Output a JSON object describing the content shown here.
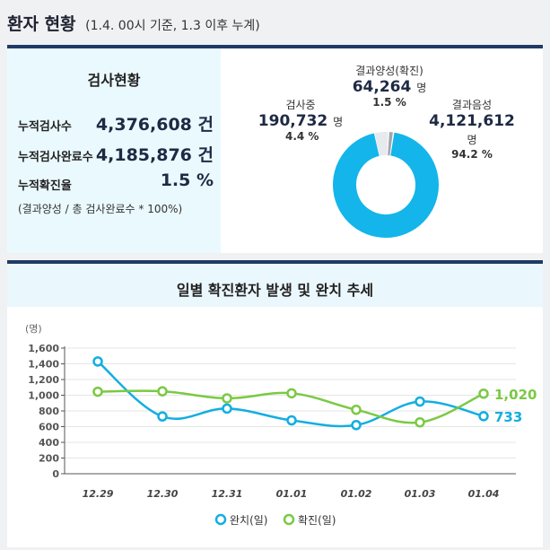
{
  "header": {
    "title": "환자 현황",
    "subtitle": "(1.4. 00시 기준, 1.3 이후 누계)"
  },
  "status": {
    "title": "검사현황",
    "rows": [
      {
        "label": "누적검사수",
        "value": "4,376,608 건"
      },
      {
        "label": "누적검사완료수",
        "value": "4,185,876 건"
      },
      {
        "label": "누적확진율",
        "value": "1.5 %"
      }
    ],
    "note": "(결과양성 / 총 검사완료수 * 100%)"
  },
  "donut": {
    "testing": {
      "label": "검사중",
      "value": "190,732",
      "unit": "명",
      "pct": "4.4 %",
      "share": 4.4,
      "color": "#e6e9ed"
    },
    "positive": {
      "label": "결과양성(확진)",
      "value": "64,264",
      "unit": "명",
      "pct": "1.5 %",
      "share": 1.5,
      "color": "#a0a6ad"
    },
    "negative": {
      "label": "결과음성",
      "value": "4,121,612",
      "unit": "명",
      "pct": "94.2 %",
      "share": 94.2,
      "color": "#13b5ea"
    }
  },
  "trend": {
    "title": "일별 확진환자 발생 및 완치 추세"
  },
  "chart_data": {
    "type": "line",
    "title": "일별 확진환자 발생 및 완치 추세",
    "unit_label": "(명)",
    "categories": [
      "12.29",
      "12.30",
      "12.31",
      "01.01",
      "01.02",
      "01.03",
      "01.04"
    ],
    "ylim": [
      0,
      1600
    ],
    "yticks": [
      "0",
      "200",
      "400",
      "600",
      "800",
      "1,000",
      "1,200",
      "1,400",
      "1,600"
    ],
    "grid": true,
    "legend_position": "bottom",
    "series": [
      {
        "name": "완치(일)",
        "color": "#13aee0",
        "values": [
          1430,
          730,
          830,
          680,
          620,
          920,
          733
        ],
        "end_label": "733"
      },
      {
        "name": "확진(일)",
        "color": "#7ac943",
        "values": [
          1045,
          1050,
          960,
          1025,
          815,
          655,
          1020
        ],
        "end_label": "1,020"
      }
    ]
  }
}
